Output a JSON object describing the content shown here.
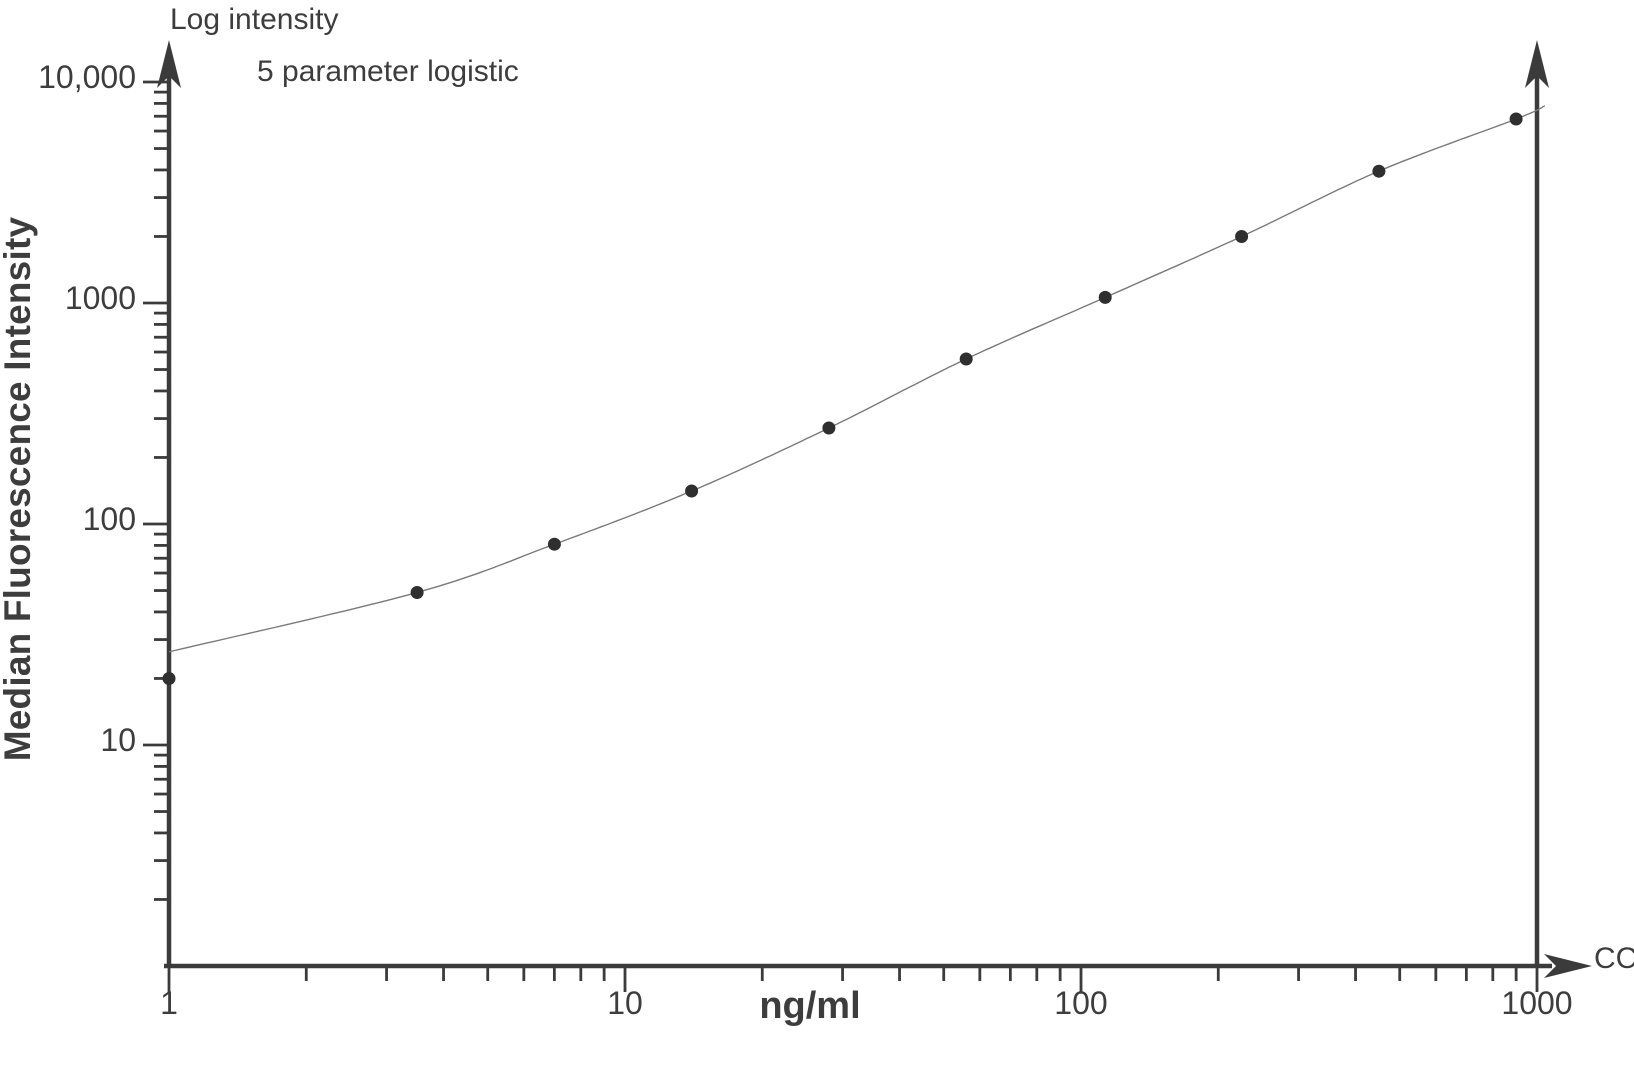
{
  "annotations": {
    "top_left": "Log intensity",
    "subtitle": "5 parameter logistic",
    "cc_label": "CC"
  },
  "axes": {
    "y_title": "Median Fluorescence Intensity",
    "x_title": "ng/ml",
    "x_tick_labels": [
      "1",
      "10",
      "100",
      "1000"
    ],
    "y_tick_labels": [
      "10",
      "100",
      "1000",
      "10,000"
    ]
  },
  "chart_data": {
    "type": "scatter",
    "title": "Log intensity",
    "subtitle": "5 parameter logistic",
    "xlabel": "ng/ml",
    "ylabel": "Median Fluorescence Intensity",
    "x_scale": "log",
    "y_scale": "log",
    "x_ticks": [
      1,
      10,
      100,
      1000
    ],
    "y_ticks": [
      10,
      100,
      1000,
      10000
    ],
    "xlim": [
      1,
      1100
    ],
    "ylim": [
      1,
      13000
    ],
    "grid": false,
    "legend": "none",
    "points": [
      [
        1,
        20
      ],
      [
        3.5,
        49
      ],
      [
        7,
        81
      ],
      [
        14,
        141
      ],
      [
        28,
        272
      ],
      [
        56,
        558
      ],
      [
        113,
        1060
      ],
      [
        225,
        2000
      ],
      [
        450,
        3950
      ],
      [
        900,
        6800
      ]
    ],
    "curve": {
      "model": "5-parameter-logistic",
      "samples": [
        [
          1,
          26.4
        ],
        [
          3.5,
          49
        ],
        [
          7,
          81
        ],
        [
          14,
          141
        ],
        [
          28,
          272
        ],
        [
          56,
          558
        ],
        [
          113,
          1060
        ],
        [
          225,
          2000
        ],
        [
          450,
          3950
        ],
        [
          900,
          6800
        ],
        [
          1040,
          7800
        ]
      ]
    },
    "cutoff_line_x": 1000,
    "colors": {
      "axis": "#3b3b3b",
      "text": "#3d3d3d",
      "curve": "#7a7a7a",
      "point": "#2f2f2f"
    }
  }
}
